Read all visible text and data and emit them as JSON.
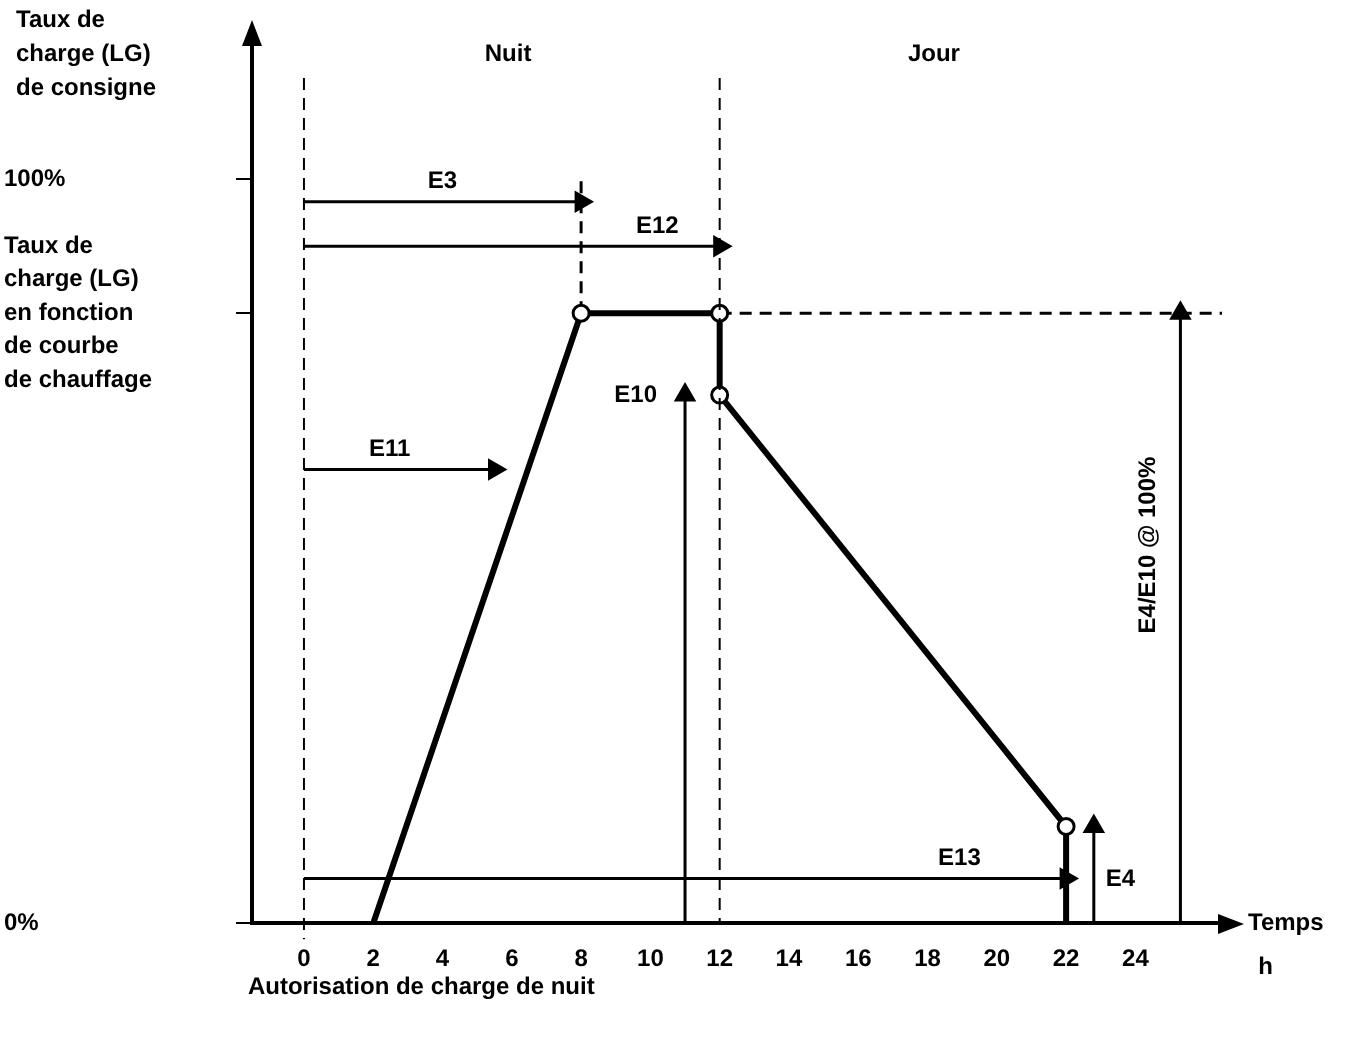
{
  "chart_data": {
    "type": "line",
    "ylabel": "Taux de charge (LG) de consigne",
    "xlabel": "Temps",
    "xlim": [
      -1.5,
      26.5
    ],
    "xticks": [
      0,
      2,
      4,
      6,
      8,
      10,
      12,
      14,
      16,
      18,
      20,
      22,
      24
    ],
    "ylim": [
      0,
      119
    ],
    "yticks": [
      {
        "value": 0,
        "label": "0%"
      },
      {
        "value": 82,
        "label": "Taux de charge (LG) en fonction de courbe de chauffage"
      },
      {
        "value": 100,
        "label": "100%"
      }
    ],
    "grid": false,
    "legend": false,
    "marker": "circle",
    "line_style": "solid",
    "series": [
      {
        "color": "#000000",
        "x": [
          2,
          8,
          12,
          12,
          22,
          22
        ],
        "values": [
          0,
          82,
          82,
          71,
          13,
          0
        ]
      },
      {
        "name": "E3",
        "color": "#000000",
        "marker": "triangle",
        "x": [
          0,
          8
        ],
        "values": [
          97,
          97
        ]
      },
      {
        "name": "E12",
        "color": "#000000",
        "marker": "triangle",
        "x": [
          0,
          12
        ],
        "values": [
          91,
          91
        ]
      },
      {
        "name": "E11",
        "color": "#000000",
        "marker": "triangle",
        "x": [
          0,
          5.5
        ],
        "values": [
          61,
          61
        ]
      },
      {
        "name": "E13",
        "color": "#000000",
        "marker": "triangle",
        "x": [
          0,
          22
        ],
        "values": [
          6,
          6
        ]
      },
      {
        "name": "E10",
        "color": "#000000",
        "marker": "triangle",
        "x": [
          11,
          11
        ],
        "values": [
          0,
          71
        ]
      },
      {
        "name": "E4",
        "color": "#000000",
        "marker": "triangle",
        "x": [
          22.8,
          22.8
        ],
        "values": [
          0,
          13
        ]
      },
      {
        "name": "E4/E10 @ 100%",
        "color": "#000000",
        "marker": "triangle",
        "x": [
          25.3,
          25.3
        ],
        "values": [
          0,
          82
        ]
      },
      {
        "color": "#000000",
        "marker": "none",
        "line_style": "dashed",
        "x": [
          8,
          8
        ],
        "values": [
          82,
          100
        ]
      },
      {
        "color": "#000000",
        "marker": "none",
        "line_style": "dashed",
        "x": [
          12,
          26.5
        ],
        "values": [
          82,
          82
        ]
      }
    ],
    "ref_lines": [
      {
        "axis": "x",
        "value": 0,
        "label": "Autorisation de charge de nuit",
        "line_style": "dashed",
        "color": "#000000"
      },
      {
        "axis": "x",
        "value": 12,
        "line_style": "dashed",
        "color": "#000000"
      }
    ],
    "annotations": [
      "Nuit",
      "Jour",
      "h"
    ]
  }
}
